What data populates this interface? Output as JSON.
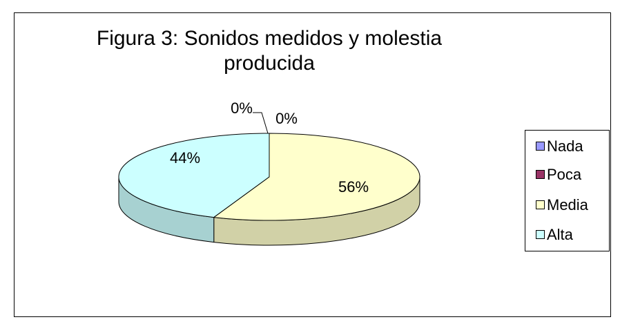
{
  "chart_data": {
    "type": "pie3d",
    "title": "Figura 3: Sonidos medidos y molestia producida",
    "categories": [
      "Nada",
      "Poca",
      "Media",
      "Alta"
    ],
    "values": [
      0,
      0,
      56,
      44
    ],
    "value_labels": [
      "0%",
      "0%",
      "56%",
      "44%"
    ],
    "colors": [
      "#9999ff",
      "#993366",
      "#ffffcc",
      "#ccffff"
    ],
    "legend": "right"
  }
}
